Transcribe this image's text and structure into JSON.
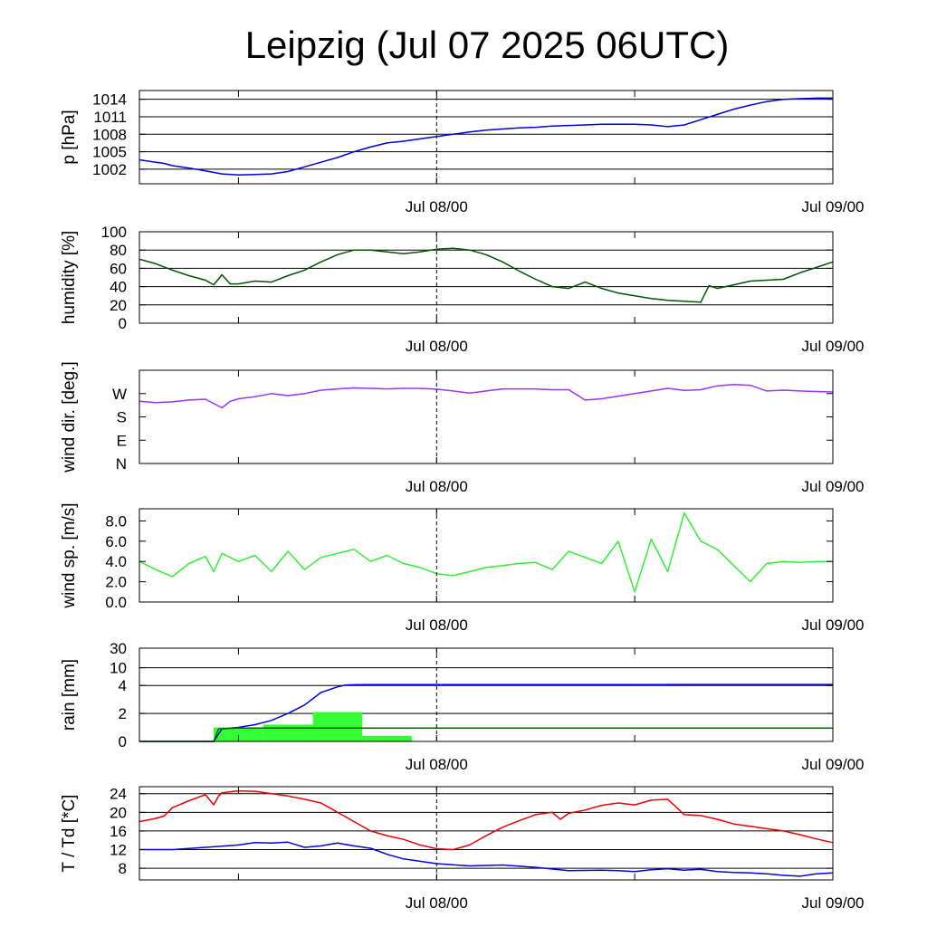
{
  "page": {
    "title": "Leipzig (Jul 07 2025 06UTC)"
  },
  "chart_data": [
    {
      "type": "line",
      "ylabel": "p [hPa]",
      "ylim": [
        999.5,
        1015.5
      ],
      "yticks": [
        1002,
        1005,
        1008,
        1011,
        1014
      ],
      "grid": "horizontal",
      "x_range": [
        "2025-07-07 06:00",
        "2025-07-09 00:00"
      ],
      "x_ticks": [
        "Jul 08/00",
        "Jul 09/00"
      ],
      "x_minor_ticks": [
        "2025-07-07 12:00",
        "2025-07-08 12:00"
      ],
      "marker_line": "Jul 08/00",
      "series": [
        {
          "color": "#0000dd",
          "x": [
            0,
            0.5,
            1,
            1.5,
            2,
            3,
            4,
            5,
            6,
            7,
            8,
            9,
            10,
            11,
            12,
            13,
            14,
            15,
            16,
            17,
            18,
            19,
            20,
            21,
            22,
            23,
            24,
            25,
            26,
            27,
            28,
            29,
            30,
            31,
            32,
            33,
            34,
            35,
            36,
            37,
            38,
            39,
            40,
            41,
            42
          ],
          "values": [
            1003.6,
            1003.4,
            1003.2,
            1003.0,
            1002.6,
            1002.2,
            1001.7,
            1001.2,
            1001.0,
            1001.1,
            1001.2,
            1001.6,
            1002.4,
            1003.2,
            1004.0,
            1005.0,
            1005.8,
            1006.5,
            1006.8,
            1007.2,
            1007.6,
            1008.0,
            1008.4,
            1008.7,
            1008.9,
            1009.1,
            1009.2,
            1009.4,
            1009.5,
            1009.6,
            1009.7,
            1009.7,
            1009.7,
            1009.6,
            1009.3,
            1009.6,
            1010.5,
            1011.4,
            1012.3,
            1013.0,
            1013.6,
            1014.0,
            1014.1,
            1014.2,
            1014.2
          ]
        }
      ]
    },
    {
      "type": "line",
      "ylabel": "humidity [%]",
      "ylim": [
        0,
        100
      ],
      "yticks": [
        0,
        20,
        40,
        60,
        80,
        100
      ],
      "grid": "horizontal",
      "x_range": [
        "2025-07-07 06:00",
        "2025-07-09 00:00"
      ],
      "x_ticks": [
        "Jul 08/00",
        "Jul 09/00"
      ],
      "marker_line": "Jul 08/00",
      "series": [
        {
          "color": "#005500",
          "x": [
            0,
            1,
            2,
            3,
            4,
            4.5,
            5,
            5.5,
            6,
            7,
            8,
            9,
            10,
            11,
            12,
            13,
            14,
            15,
            16,
            17,
            18,
            19,
            20,
            21,
            22,
            23,
            24,
            25,
            26,
            27,
            28,
            29,
            30,
            31,
            32,
            33,
            34,
            34.5,
            35,
            36,
            37,
            38,
            39,
            40,
            41,
            42
          ],
          "values": [
            70,
            65,
            58,
            52,
            47,
            42,
            53,
            43,
            43,
            46,
            45,
            52,
            58,
            67,
            75,
            80,
            80,
            78,
            76,
            78,
            81,
            82,
            80,
            75,
            67,
            57,
            48,
            40,
            38,
            45,
            38,
            33,
            30,
            27,
            25,
            24,
            23,
            41,
            38,
            42,
            46,
            47,
            48,
            55,
            61,
            67
          ]
        }
      ]
    },
    {
      "type": "line",
      "ylabel": "wind dir. [deg.]",
      "ylim": [
        0,
        360
      ],
      "yticks": [
        0,
        90,
        180,
        270
      ],
      "yticklabels": [
        "N",
        "E",
        "S",
        "W"
      ],
      "grid": "none",
      "x_range": [
        "2025-07-07 06:00",
        "2025-07-09 00:00"
      ],
      "x_ticks": [
        "Jul 08/00",
        "Jul 09/00"
      ],
      "marker_line": "Jul 08/00",
      "series": [
        {
          "color": "#9933ff",
          "x": [
            0,
            1,
            2,
            3,
            4,
            5,
            5.5,
            6,
            7,
            8,
            9,
            10,
            11,
            12,
            13,
            14,
            15,
            16,
            17,
            18,
            19,
            20,
            21,
            22,
            23,
            24,
            25,
            26,
            27,
            28,
            29,
            30,
            31,
            32,
            33,
            34,
            35,
            36,
            37,
            38,
            39,
            40,
            41,
            42
          ],
          "values": [
            240,
            235,
            238,
            245,
            248,
            215,
            240,
            250,
            258,
            270,
            262,
            270,
            283,
            288,
            292,
            290,
            288,
            290,
            290,
            287,
            280,
            272,
            280,
            288,
            288,
            288,
            285,
            285,
            245,
            250,
            260,
            270,
            280,
            290,
            282,
            285,
            300,
            305,
            302,
            280,
            283,
            280,
            278,
            276
          ]
        }
      ]
    },
    {
      "type": "line",
      "ylabel": "wind sp. [m/s]",
      "ylim": [
        0,
        9.2
      ],
      "yticks": [
        0,
        2,
        4,
        6,
        8
      ],
      "yticklabels": [
        "0.0",
        "2.0",
        "4.0",
        "6.0",
        "8.0"
      ],
      "grid": "none",
      "x_range": [
        "2025-07-07 06:00",
        "2025-07-09 00:00"
      ],
      "x_ticks": [
        "Jul 08/00",
        "Jul 09/00"
      ],
      "marker_line": "Jul 08/00",
      "series": [
        {
          "color": "#33ee33",
          "x": [
            0,
            1,
            2,
            3,
            4,
            4.5,
            5,
            6,
            7,
            8,
            9,
            10,
            11,
            12,
            13,
            14,
            15,
            16,
            17,
            18,
            19,
            20,
            21,
            22,
            23,
            24,
            25,
            26,
            27,
            28,
            29,
            30,
            31,
            32,
            33,
            34,
            35,
            36,
            37,
            38,
            39,
            40,
            41,
            42
          ],
          "values": [
            4.0,
            3.2,
            2.5,
            3.8,
            4.5,
            3.0,
            4.8,
            4.0,
            4.6,
            3.0,
            5.0,
            3.2,
            4.4,
            4.8,
            5.2,
            4.0,
            4.6,
            3.8,
            3.4,
            2.8,
            2.6,
            3.0,
            3.4,
            3.6,
            3.8,
            3.9,
            3.2,
            5.0,
            4.4,
            3.8,
            6.0,
            1.0,
            6.2,
            3.0,
            8.8,
            6.0,
            5.2,
            3.6,
            2.0,
            3.8,
            4.0,
            3.9,
            4.0,
            4.0
          ]
        }
      ]
    },
    {
      "type": "bar+line",
      "ylabel": "rain [mm]",
      "yticks": [
        0,
        2,
        4,
        10,
        30
      ],
      "grid": "horizontal",
      "x_range": [
        "2025-07-07 06:00",
        "2025-07-09 00:00"
      ],
      "x_ticks": [
        "Jul 08/00",
        "Jul 09/00"
      ],
      "marker_line": "Jul 08/00",
      "bars": {
        "color": "#33ff33",
        "periods": [
          [
            4.5,
            7.5
          ],
          [
            7.5,
            10.5
          ],
          [
            10.5,
            13.5
          ],
          [
            13.5,
            16.5
          ]
        ],
        "values": [
          1.0,
          1.2,
          2.1,
          0.4
        ]
      },
      "series": [
        {
          "color": "#0000dd",
          "x": [
            0,
            4.5,
            5,
            6,
            7,
            8,
            9,
            10,
            11,
            12,
            12.5,
            13,
            14,
            16,
            20,
            30,
            42
          ],
          "values": [
            0,
            0,
            0.9,
            1.0,
            1.2,
            1.5,
            2.0,
            2.6,
            3.5,
            3.9,
            4.15,
            4.25,
            4.3,
            4.3,
            4.3,
            4.3,
            4.35
          ]
        },
        {
          "color": "#006600",
          "x": [
            0,
            4.5,
            4.8,
            6,
            10,
            14,
            20,
            30,
            42
          ],
          "values": [
            0,
            0,
            0.9,
            0.95,
            0.95,
            0.95,
            0.95,
            0.95,
            0.95
          ]
        }
      ]
    },
    {
      "type": "line",
      "ylabel": "T / Td [*C]",
      "ylim": [
        5.5,
        25.5
      ],
      "yticks": [
        8,
        12,
        16,
        20,
        24
      ],
      "grid": "horizontal",
      "x_range": [
        "2025-07-07 06:00",
        "2025-07-09 00:00"
      ],
      "x_ticks": [
        "Jul 08/00",
        "Jul 09/00"
      ],
      "marker_line": "Jul 08/00",
      "series": [
        {
          "color": "#ee0000",
          "x": [
            0,
            1,
            1.5,
            2,
            3,
            4,
            4.5,
            4.8,
            5,
            6,
            7,
            8,
            9,
            10,
            11,
            12,
            13,
            14,
            15,
            16,
            17,
            18,
            19,
            20,
            21,
            22,
            23,
            24,
            25,
            25.5,
            26,
            27,
            28,
            29,
            30,
            31,
            32,
            33,
            34,
            35,
            36,
            37,
            38,
            39,
            40,
            41,
            42
          ],
          "values": [
            18.0,
            18.7,
            19.2,
            21.0,
            22.5,
            23.8,
            21.6,
            23.5,
            24.2,
            24.6,
            24.5,
            24.0,
            23.5,
            22.8,
            22.0,
            20.0,
            18.0,
            16.0,
            15.0,
            14.2,
            13.0,
            12.2,
            12.0,
            13.0,
            15.0,
            16.8,
            18.2,
            19.5,
            20.0,
            18.5,
            19.8,
            20.5,
            21.5,
            22.0,
            21.6,
            22.6,
            22.8,
            19.5,
            19.3,
            18.5,
            17.5,
            17.0,
            16.5,
            16.0,
            15.2,
            14.3,
            13.5
          ]
        },
        {
          "color": "#0000dd",
          "x": [
            0,
            2,
            4,
            6,
            7,
            8,
            9,
            10,
            11,
            12,
            13,
            14,
            15,
            16,
            18,
            20,
            22,
            24,
            26,
            28,
            29,
            30,
            31,
            32,
            33,
            34,
            35,
            36,
            37,
            38,
            39,
            40,
            41,
            42
          ],
          "values": [
            12.0,
            12.0,
            12.5,
            13.0,
            13.5,
            13.4,
            13.6,
            12.5,
            12.8,
            13.4,
            12.8,
            12.3,
            11.0,
            10.0,
            9.0,
            8.5,
            8.7,
            8.2,
            7.5,
            7.6,
            7.5,
            7.3,
            7.7,
            7.9,
            7.6,
            7.8,
            7.3,
            7.1,
            7.0,
            6.8,
            6.5,
            6.3,
            6.8,
            7.0
          ]
        }
      ]
    }
  ]
}
